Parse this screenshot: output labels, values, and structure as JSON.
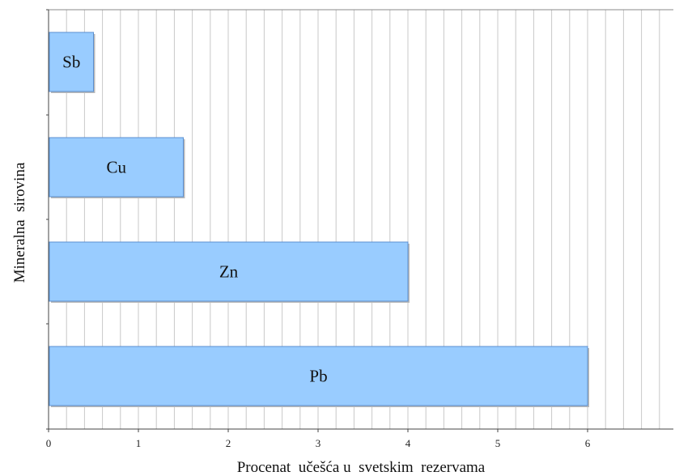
{
  "chart_data": {
    "type": "bar",
    "orientation": "horizontal",
    "categories": [
      "Sb",
      "Cu",
      "Zn",
      "Pb"
    ],
    "values": [
      0.5,
      1.5,
      4,
      6
    ],
    "xlabel": "Procenat  učešća u  svetskim  rezervama",
    "ylabel": "Mineralna  sirovina",
    "xlim": [
      0,
      7
    ],
    "xticks": [
      0,
      1,
      2,
      3,
      4,
      5,
      6
    ],
    "grid": true,
    "bar_color": "#99ccff",
    "bar_edge_color": "#5b8fd0"
  }
}
